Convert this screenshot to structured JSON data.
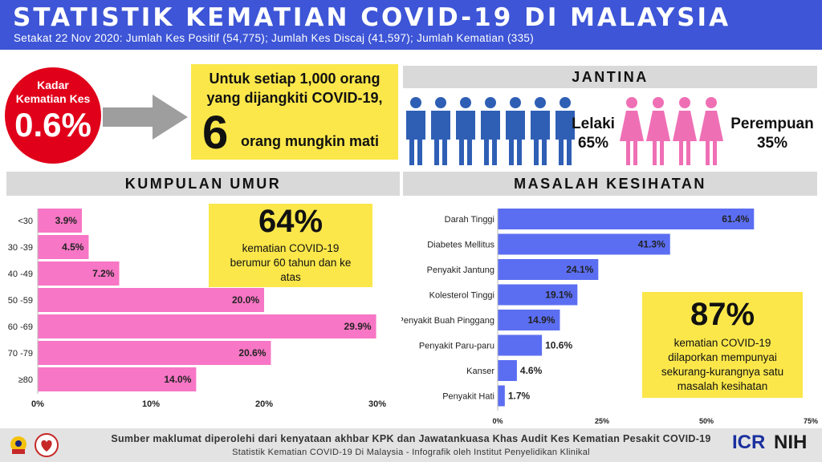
{
  "header": {
    "title": "STATISTIK KEMATIAN COVID-19 DI MALAYSIA",
    "subtitle": "Setakat 22 Nov 2020: Jumlah Kes Positif (54,775); Jumlah Kes Discaj (41,597); Jumlah Kematian (335)"
  },
  "rate": {
    "label_line1": "Kadar",
    "label_line2": "Kematian Kes",
    "value": "0.6%"
  },
  "per_thousand": {
    "line1": "Untuk setiap 1,000 orang",
    "line2": "yang dijangkiti COVID-19,",
    "number": "6",
    "line3": "orang mungkin mati"
  },
  "gender": {
    "title": "JANTINA",
    "male_label": "Lelaki",
    "male_pct": "65%",
    "male_value": 65,
    "female_label": "Perempuan",
    "female_pct": "35%",
    "female_value": 35,
    "colors": {
      "male": "#2f5fb5",
      "female": "#ef6fb5"
    }
  },
  "age": {
    "title": "KUMPULAN UMUR",
    "callout_big": "64%",
    "callout_text_1": "kematian COVID-19",
    "callout_text_2": "berumur 60 tahun dan ke",
    "callout_text_3": "atas"
  },
  "health": {
    "title": "MASALAH KESIHATAN",
    "callout_big": "87%",
    "callout_text_1": "kematian COVID-19",
    "callout_text_2": "dilaporkan mempunyai",
    "callout_text_3": "sekurang-kurangnya satu",
    "callout_text_4": "masalah kesihatan"
  },
  "chart_data": [
    {
      "type": "bar",
      "orientation": "horizontal",
      "categories": [
        "<30",
        "30 -39",
        "40 -49",
        "50 -59",
        "60 -69",
        "70 -79",
        "≥80"
      ],
      "values": [
        3.9,
        4.5,
        7.2,
        20.0,
        29.9,
        20.6,
        14.0
      ],
      "value_labels": [
        "3.9%",
        "4.5%",
        "7.2%",
        "20.0%",
        "29.9%",
        "20.6%",
        "14.0%"
      ],
      "xlim": [
        0,
        30
      ],
      "ticks": [
        "0%",
        "10%",
        "20%",
        "30%"
      ],
      "color": "#f776c5"
    },
    {
      "type": "bar",
      "orientation": "horizontal",
      "categories": [
        "Darah Tinggi",
        "Diabetes Mellitus",
        "Penyakit Jantung",
        "Kolesterol Tinggi",
        "Penyakit Buah Pinggang",
        "Penyakit Paru-paru",
        "Kanser",
        "Penyakit Hati"
      ],
      "values": [
        61.4,
        41.3,
        24.1,
        19.1,
        14.9,
        10.6,
        4.6,
        1.7
      ],
      "value_labels": [
        "61.4%",
        "41.3%",
        "24.1%",
        "19.1%",
        "14.9%",
        "10.6%",
        "4.6%",
        "1.7%"
      ],
      "xlim": [
        0,
        75
      ],
      "ticks": [
        "0%",
        "25%",
        "50%",
        "75%"
      ],
      "color": "#5b6ef2"
    }
  ],
  "footer": {
    "line1": "Sumber maklumat diperolehi dari kenyataan akhbar KPK dan Jawatankuasa Khas Audit Kes Kematian Pesakit COVID-19",
    "line2": "Statistik Kematian COVID-19 Di Malaysia -  Infografik oleh Institut Penyelidikan Klinikal",
    "logo_icr": "ICR",
    "logo_nih": "NIH"
  }
}
